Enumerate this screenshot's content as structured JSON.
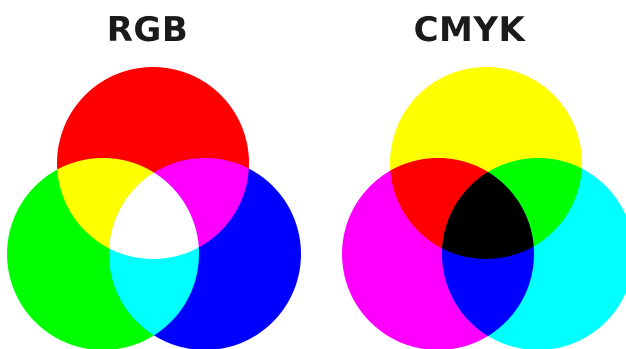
{
  "models": [
    {
      "title": "RGB",
      "primaries": [
        "#ff0000",
        "#00ff00",
        "#0000ff"
      ],
      "overlap_pairs": {
        "first_second": "#ffff00",
        "first_third": "#ff00ff",
        "second_third": "#00ffff"
      },
      "center": "#ffffff"
    },
    {
      "title": "CMYK",
      "primaries": [
        "#ffff00",
        "#ff00ff",
        "#00ffff"
      ],
      "overlap_pairs": {
        "first_second": "#ff0000",
        "first_third": "#00ff00",
        "second_third": "#0000ff"
      },
      "center": "#000000"
    }
  ]
}
